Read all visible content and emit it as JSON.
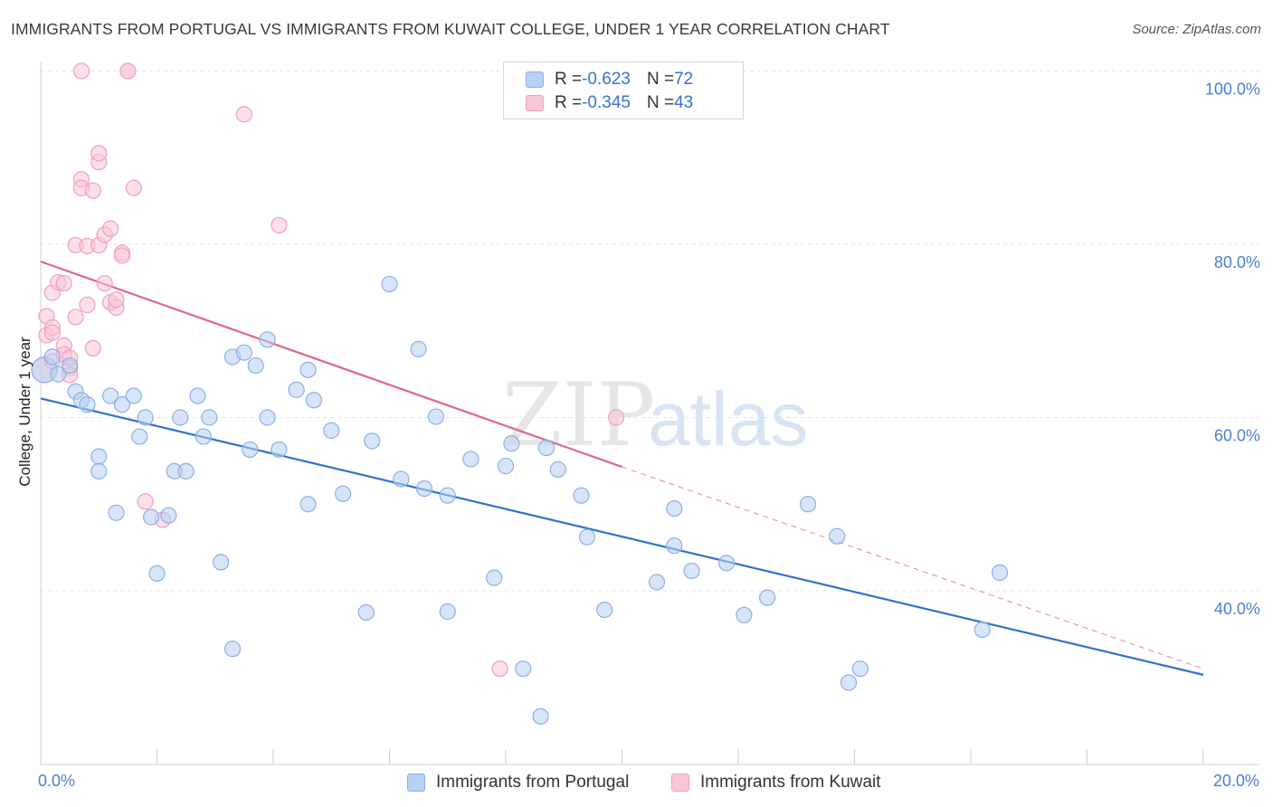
{
  "header": {
    "title": "IMMIGRANTS FROM PORTUGAL VS IMMIGRANTS FROM KUWAIT COLLEGE, UNDER 1 YEAR CORRELATION CHART",
    "source": "Source: ZipAtlas.com"
  },
  "colors": {
    "portugal_fill": "#b8d0f2",
    "portugal_stroke": "#8ab0e6",
    "portugal_line": "#2f72d0",
    "kuwait_fill": "#f8c6d5",
    "kuwait_stroke": "#efa0ba",
    "kuwait_line": "#e0648f",
    "tick_text": "#4a7fd4",
    "grid": "#e4e4e4"
  },
  "legend": {
    "portugal": {
      "r_label": "R = ",
      "r_value": "-0.623",
      "n_label": "N = ",
      "n_value": "72"
    },
    "kuwait": {
      "r_label": "R = ",
      "r_value": "-0.345",
      "n_label": "N = ",
      "n_value": "43"
    }
  },
  "watermark": {
    "zip": "ZIP",
    "atlas": "atlas"
  },
  "chart_data": {
    "type": "scatter",
    "title": "IMMIGRANTS FROM PORTUGAL VS IMMIGRANTS FROM KUWAIT COLLEGE, UNDER 1 YEAR CORRELATION CHART",
    "xlabel": "",
    "ylabel": "College, Under 1 year",
    "xlim": [
      0,
      20
    ],
    "ylim": [
      20,
      102
    ],
    "x_tick_labels": [
      {
        "value": 0,
        "label": "0.0%"
      },
      {
        "value": 20,
        "label": "20.0%"
      }
    ],
    "x_minor_ticks": [
      2,
      4,
      6,
      8,
      10,
      12,
      14,
      16,
      18,
      20
    ],
    "y_ticks": [
      {
        "value": 100,
        "label": "100.0%"
      },
      {
        "value": 80,
        "label": "80.0%"
      },
      {
        "value": 60,
        "label": "60.0%"
      },
      {
        "value": 40,
        "label": "40.0%"
      }
    ],
    "grid": true,
    "series": [
      {
        "name": "Immigrants from Portugal",
        "r": -0.623,
        "n": 72,
        "trend": {
          "x": [
            0,
            20
          ],
          "y": [
            62.2,
            30.3
          ],
          "dashed_beyond": null
        },
        "points": [
          [
            0.0,
            65.5
          ],
          [
            0.2,
            67.0
          ],
          [
            0.3,
            65.0
          ],
          [
            0.5,
            66.0
          ],
          [
            0.6,
            63.0
          ],
          [
            0.7,
            62.0
          ],
          [
            0.8,
            61.5
          ],
          [
            1.0,
            55.5
          ],
          [
            1.0,
            53.8
          ],
          [
            1.2,
            62.5
          ],
          [
            1.4,
            61.5
          ],
          [
            1.3,
            49.0
          ],
          [
            1.6,
            62.5
          ],
          [
            1.7,
            57.8
          ],
          [
            1.8,
            60.0
          ],
          [
            1.9,
            48.5
          ],
          [
            2.0,
            42.0
          ],
          [
            2.2,
            48.7
          ],
          [
            2.3,
            53.8
          ],
          [
            2.4,
            60.0
          ],
          [
            2.5,
            53.8
          ],
          [
            2.7,
            62.5
          ],
          [
            2.8,
            57.8
          ],
          [
            2.9,
            60.0
          ],
          [
            3.1,
            43.3
          ],
          [
            3.3,
            33.3
          ],
          [
            3.3,
            67.0
          ],
          [
            3.5,
            67.5
          ],
          [
            3.6,
            56.3
          ],
          [
            3.7,
            66.0
          ],
          [
            3.9,
            60.0
          ],
          [
            3.9,
            69.0
          ],
          [
            4.1,
            56.3
          ],
          [
            4.4,
            63.2
          ],
          [
            4.6,
            65.5
          ],
          [
            4.6,
            50.0
          ],
          [
            4.7,
            62.0
          ],
          [
            5.0,
            58.5
          ],
          [
            5.2,
            51.2
          ],
          [
            5.6,
            37.5
          ],
          [
            5.7,
            57.3
          ],
          [
            6.0,
            75.4
          ],
          [
            6.2,
            52.9
          ],
          [
            6.6,
            51.8
          ],
          [
            6.5,
            67.9
          ],
          [
            6.8,
            60.1
          ],
          [
            7.0,
            51.0
          ],
          [
            7.0,
            37.6
          ],
          [
            7.4,
            55.2
          ],
          [
            7.8,
            41.5
          ],
          [
            8.0,
            54.4
          ],
          [
            8.1,
            57.0
          ],
          [
            8.3,
            31.0
          ],
          [
            8.7,
            56.5
          ],
          [
            8.6,
            25.5
          ],
          [
            8.9,
            54.0
          ],
          [
            9.3,
            51.0
          ],
          [
            9.4,
            46.2
          ],
          [
            9.7,
            37.8
          ],
          [
            10.6,
            41.0
          ],
          [
            10.9,
            49.5
          ],
          [
            10.9,
            45.2
          ],
          [
            11.2,
            42.3
          ],
          [
            11.8,
            43.2
          ],
          [
            12.1,
            37.2
          ],
          [
            12.5,
            39.2
          ],
          [
            13.2,
            50.0
          ],
          [
            13.7,
            46.3
          ],
          [
            13.9,
            29.4
          ],
          [
            14.1,
            31.0
          ],
          [
            16.2,
            35.5
          ],
          [
            16.5,
            42.1
          ]
        ]
      },
      {
        "name": "Immigrants from Kuwait",
        "r": -0.345,
        "n": 43,
        "trend": {
          "x": [
            0,
            10.0
          ],
          "y": [
            78.0,
            54.3
          ],
          "dashed_x": [
            10.0,
            20
          ],
          "dashed_y": [
            54.3,
            31.0
          ]
        },
        "points": [
          [
            0.0,
            65.5
          ],
          [
            0.1,
            69.5
          ],
          [
            0.1,
            71.7
          ],
          [
            0.2,
            70.4
          ],
          [
            0.2,
            69.8
          ],
          [
            0.2,
            66.5
          ],
          [
            0.2,
            74.4
          ],
          [
            0.3,
            75.6
          ],
          [
            0.4,
            75.5
          ],
          [
            0.4,
            68.3
          ],
          [
            0.4,
            67.3
          ],
          [
            0.5,
            65.7
          ],
          [
            0.5,
            64.9
          ],
          [
            0.5,
            66.9
          ],
          [
            0.6,
            71.6
          ],
          [
            0.6,
            79.9
          ],
          [
            0.7,
            87.5
          ],
          [
            0.7,
            86.5
          ],
          [
            0.8,
            79.8
          ],
          [
            0.8,
            73.0
          ],
          [
            0.9,
            68.0
          ],
          [
            0.9,
            86.2
          ],
          [
            1.0,
            79.9
          ],
          [
            1.0,
            89.5
          ],
          [
            1.0,
            90.5
          ],
          [
            1.1,
            75.5
          ],
          [
            1.1,
            81.1
          ],
          [
            1.2,
            81.8
          ],
          [
            1.2,
            73.3
          ],
          [
            1.3,
            72.7
          ],
          [
            1.3,
            73.6
          ],
          [
            1.4,
            79.0
          ],
          [
            1.4,
            78.7
          ],
          [
            1.6,
            86.5
          ],
          [
            1.8,
            50.3
          ],
          [
            2.1,
            48.2
          ],
          [
            0.7,
            100.0
          ],
          [
            1.5,
            100.0
          ],
          [
            3.5,
            95.0
          ],
          [
            4.1,
            82.2
          ],
          [
            7.9,
            31.0
          ],
          [
            9.9,
            60.0
          ],
          [
            1.5,
            100.0
          ]
        ]
      }
    ],
    "legend_position": "top-center"
  }
}
